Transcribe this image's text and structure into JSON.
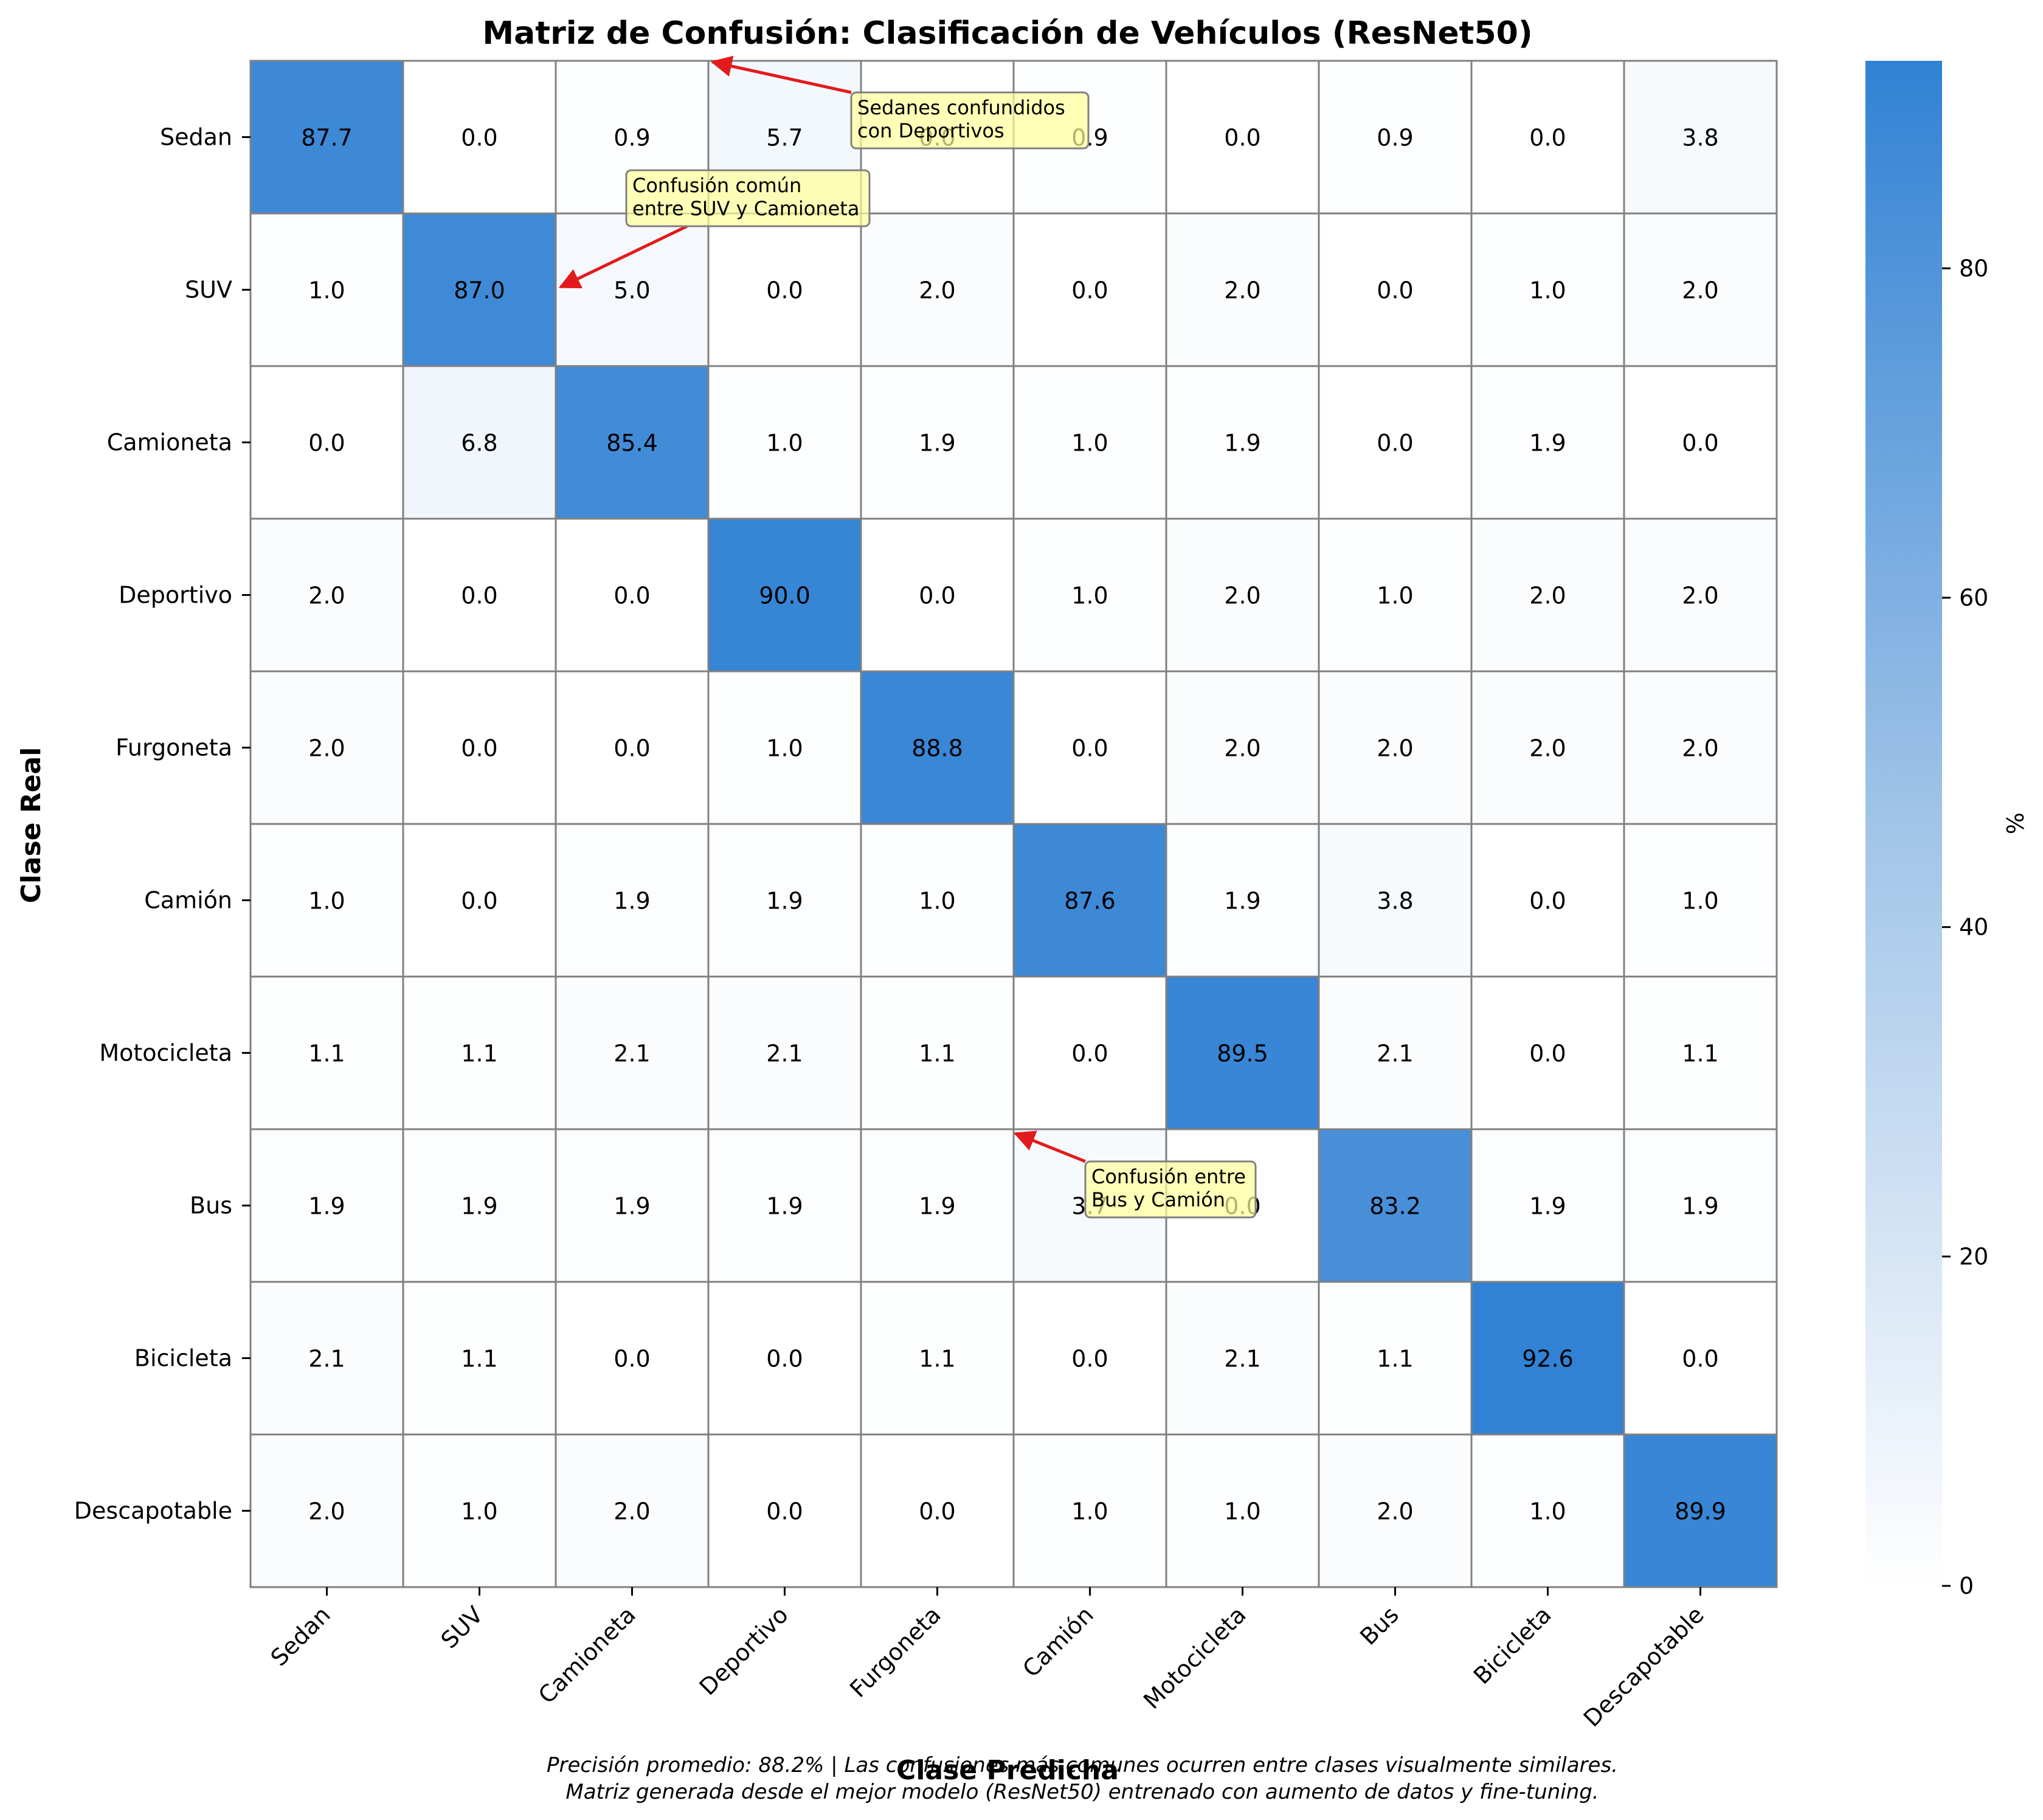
{
  "chart_data": {
    "type": "heatmap",
    "title": "Matriz de Confusión: Clasificación de Vehículos (ResNet50)",
    "xlabel": "Clase Predicha",
    "ylabel": "Clase Real",
    "x_categories": [
      "Sedan",
      "SUV",
      "Camioneta",
      "Deportivo",
      "Furgoneta",
      "Camión",
      "Motocicleta",
      "Bus",
      "Bicicleta",
      "Descapotable"
    ],
    "y_categories": [
      "Sedan",
      "SUV",
      "Camioneta",
      "Deportivo",
      "Furgoneta",
      "Camión",
      "Motocicleta",
      "Bus",
      "Bicicleta",
      "Descapotable"
    ],
    "values": [
      [
        87.7,
        0.0,
        0.9,
        5.7,
        0.0,
        0.9,
        0.0,
        0.9,
        0.0,
        3.8
      ],
      [
        1.0,
        87.0,
        5.0,
        0.0,
        2.0,
        0.0,
        2.0,
        0.0,
        1.0,
        2.0
      ],
      [
        0.0,
        6.8,
        85.4,
        1.0,
        1.9,
        1.0,
        1.9,
        0.0,
        1.9,
        0.0
      ],
      [
        2.0,
        0.0,
        0.0,
        90.0,
        0.0,
        1.0,
        2.0,
        1.0,
        2.0,
        2.0
      ],
      [
        2.0,
        0.0,
        0.0,
        1.0,
        88.8,
        0.0,
        2.0,
        2.0,
        2.0,
        2.0
      ],
      [
        1.0,
        0.0,
        1.9,
        1.9,
        1.0,
        87.6,
        1.9,
        3.8,
        0.0,
        1.0
      ],
      [
        1.1,
        1.1,
        2.1,
        2.1,
        1.1,
        0.0,
        89.5,
        2.1,
        0.0,
        1.1
      ],
      [
        1.9,
        1.9,
        1.9,
        1.9,
        1.9,
        3.7,
        0.0,
        83.2,
        1.9,
        1.9
      ],
      [
        2.1,
        1.1,
        0.0,
        0.0,
        1.1,
        0.0,
        2.1,
        1.1,
        92.6,
        0.0
      ],
      [
        2.0,
        1.0,
        2.0,
        0.0,
        0.0,
        1.0,
        1.0,
        2.0,
        1.0,
        89.9
      ]
    ],
    "colorbar": {
      "label": "%",
      "range": [
        0,
        92.6
      ],
      "ticks": [
        0,
        20,
        40,
        60,
        80
      ],
      "color_low": "#ffffff",
      "color_mid": "#a1c4e8",
      "color_high": "#3182d4"
    },
    "annotations": [
      {
        "text": "Sedanes confundidos\ncon Deportivos",
        "row": 0,
        "col": 3
      },
      {
        "text": "Confusión común\nentre SUV y Camioneta",
        "row": 1,
        "col": 1
      },
      {
        "text": "Confusión entre\nBus y Camión",
        "row": 7,
        "col": 5
      }
    ],
    "footer": [
      "Precisión promedio: 88.2% | Las confusiones más comunes ocurren entre clases visualmente similares.",
      "Matriz generada desde el mejor modelo (ResNet50) entrenado con aumento de datos y fine-tuning."
    ],
    "grid": true,
    "annotation_color": "#ffff99",
    "arrow_color": "#e31a1c"
  }
}
